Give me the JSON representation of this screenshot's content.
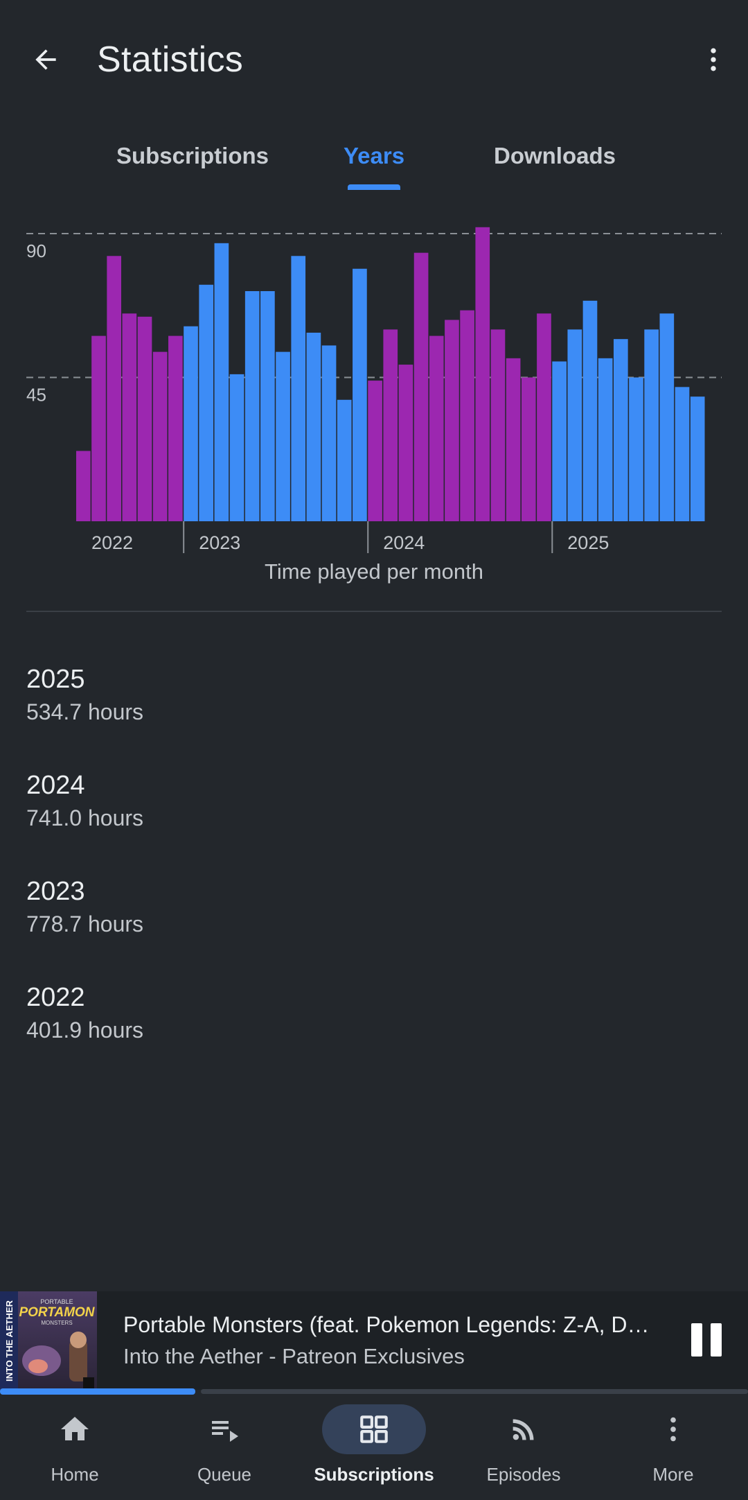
{
  "appbar": {
    "title": "Statistics"
  },
  "tabs": [
    {
      "label": "Subscriptions",
      "active": false
    },
    {
      "label": "Years",
      "active": true
    },
    {
      "label": "Downloads",
      "active": false
    }
  ],
  "colors": {
    "accent": "#3d8cf6",
    "purple": "#9c27b0",
    "blue": "#3d8cf6",
    "background": "#23272c"
  },
  "chart_data": {
    "type": "bar",
    "title": "Time played per month",
    "y_ticks": [
      45,
      90
    ],
    "ylim": [
      0,
      90
    ],
    "grid": "dashed horizontal at tick values",
    "years": [
      {
        "label": "2022",
        "color": "purple",
        "values": [
          22,
          58,
          83,
          65,
          64,
          53,
          58
        ]
      },
      {
        "label": "2023",
        "color": "blue",
        "values": [
          61,
          74,
          87,
          46,
          72,
          72,
          53,
          83,
          59,
          55,
          38,
          79
        ]
      },
      {
        "label": "2024",
        "color": "purple",
        "values": [
          44,
          60,
          49,
          84,
          58,
          63,
          66,
          92,
          60,
          51,
          45,
          65
        ]
      },
      {
        "label": "2025",
        "color": "blue",
        "values": [
          50,
          60,
          69,
          51,
          57,
          45,
          60,
          65,
          42,
          39
        ]
      }
    ]
  },
  "year_list": [
    {
      "year": "2025",
      "hours": "534.7 hours"
    },
    {
      "year": "2024",
      "hours": "741.0 hours"
    },
    {
      "year": "2023",
      "hours": "778.7 hours"
    },
    {
      "year": "2022",
      "hours": "401.9 hours"
    }
  ],
  "player": {
    "title": "Portable Monsters (feat. Pokemon Legends: Z-A, D…",
    "subtitle": "Into the Aether - Patreon Exclusives",
    "progress": 0.27,
    "cover_text": {
      "top": "PORTABLE",
      "main": "PORTAMON",
      "sub": "MONSTERS",
      "side": "INTO THE AETHER"
    }
  },
  "bottom_nav": [
    {
      "label": "Home",
      "icon": "home-icon",
      "active": false
    },
    {
      "label": "Queue",
      "icon": "queue-icon",
      "active": false
    },
    {
      "label": "Subscriptions",
      "icon": "grid-icon",
      "active": true
    },
    {
      "label": "Episodes",
      "icon": "rss-icon",
      "active": false
    },
    {
      "label": "More",
      "icon": "more-vert-icon",
      "active": false
    }
  ]
}
